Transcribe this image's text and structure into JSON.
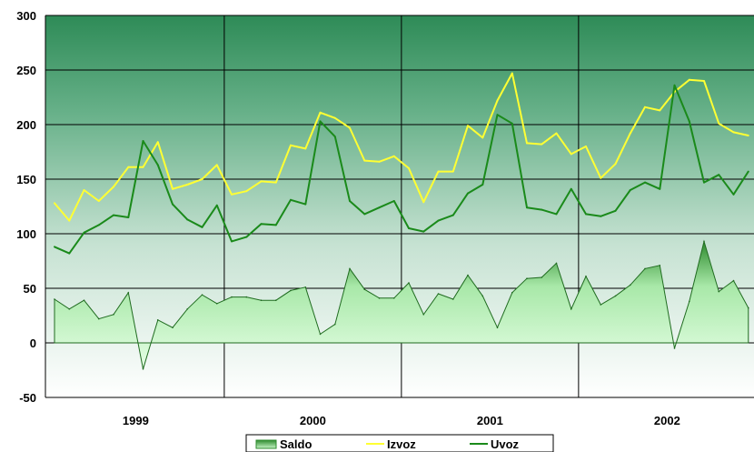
{
  "chart_data": {
    "type": "area",
    "title": "",
    "xlabel": "",
    "ylabel": "",
    "ylim": [
      -50,
      300
    ],
    "y_ticks": [
      "300",
      "250",
      "200",
      "150",
      "100",
      "50",
      "0",
      "-50"
    ],
    "x_ticks": [
      "1999",
      "2000",
      "2001",
      "2002"
    ],
    "grid": true,
    "legend_position": "bottom",
    "series": [
      {
        "name": "Saldo",
        "kind": "area",
        "color": "#2e8b2e",
        "values": [
          40,
          31,
          39,
          22,
          26,
          46,
          -24,
          21,
          14,
          31,
          44,
          36,
          42,
          42,
          39,
          39,
          48,
          51,
          8,
          17,
          68,
          49,
          41,
          41,
          55,
          26,
          45,
          40,
          62,
          43,
          14,
          46,
          59,
          60,
          73,
          31,
          61,
          35,
          43,
          53,
          68,
          71,
          -5,
          38,
          93,
          47,
          57,
          32
        ]
      },
      {
        "name": "Izvoz",
        "kind": "line",
        "color": "#ffff33",
        "values": [
          128,
          112,
          140,
          130,
          143,
          161,
          161,
          184,
          141,
          145,
          150,
          163,
          136,
          139,
          148,
          147,
          181,
          178,
          211,
          206,
          197,
          167,
          166,
          171,
          160,
          129,
          157,
          157,
          199,
          188,
          222,
          247,
          183,
          182,
          192,
          173,
          180,
          151,
          164,
          192,
          216,
          213,
          230,
          241,
          240,
          201,
          193,
          190
        ]
      },
      {
        "name": "Uvoz",
        "kind": "line",
        "color": "#1a8a1a",
        "values": [
          88,
          82,
          101,
          108,
          117,
          115,
          185,
          163,
          127,
          113,
          106,
          126,
          93,
          97,
          109,
          108,
          131,
          127,
          203,
          189,
          130,
          118,
          124,
          130,
          105,
          102,
          112,
          117,
          137,
          145,
          209,
          201,
          124,
          122,
          118,
          141,
          118,
          116,
          121,
          140,
          147,
          141,
          236,
          203,
          147,
          154,
          136,
          157
        ]
      }
    ]
  }
}
